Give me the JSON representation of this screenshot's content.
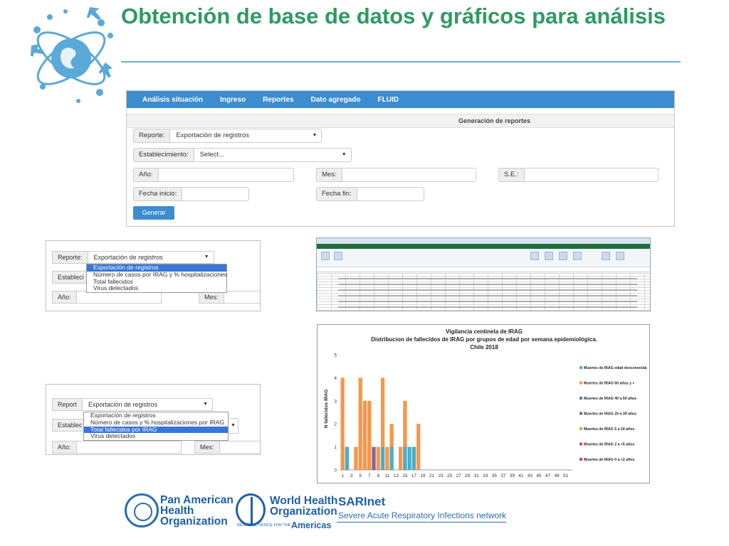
{
  "title": "Obtención de base de datos y gráficos para análisis",
  "app": {
    "nav": [
      "Análisis situación",
      "Ingreso",
      "Reportes",
      "Dato agregado",
      "FLUID"
    ],
    "header": "Generación de reportes",
    "reporte_label": "Reporte:",
    "reporte_value": "Exportación de registros",
    "establecimiento_label": "Establecimiento:",
    "establecimiento_value": "Select...",
    "anio_label": "Año:",
    "mes_label": "Mes:",
    "se_label": "S.E.:",
    "fecha_inicio_label": "Fecha inicio:",
    "fecha_fin_label": "Fecha fin:",
    "generar": "Generar"
  },
  "dropdown1": {
    "label": "Reporte:",
    "value": "Exportación de registros",
    "label2": "Establecí",
    "anio": "Año:",
    "mes": "Mes:",
    "options": [
      "Exportación de registros",
      "Número de casos por IRAG y % hospitalizaciones",
      "Total fallecidos",
      "Virus detectados"
    ],
    "selected_index": 0
  },
  "dropdown2": {
    "label": "Report",
    "value": "Exportación de registros",
    "label2": "Establec",
    "anio": "Año:",
    "mes": "Mes:",
    "options": [
      "Exportación de registros",
      "Número de casos y % hospitalizaciones por IRAG",
      "Total fallecidos por IRAG",
      "Virus detectados"
    ],
    "selected_index": 2
  },
  "chart_data": {
    "type": "bar",
    "title": "Vigilancia centinela de IRAG",
    "subtitle": "Distribucion de fallecidos de IRAG por grupos de edad por semana epidemiológica.",
    "subtitle2": "Chile 2018",
    "ylabel": "N fallecidos IRAG",
    "ylim": [
      0,
      5
    ],
    "yticks": [
      0,
      1,
      2,
      3,
      4,
      5
    ],
    "x_tick_labels": [
      "1",
      "3",
      "5",
      "7",
      "9",
      "11",
      "13",
      "15",
      "17",
      "19",
      "21",
      "23",
      "25",
      "27",
      "29",
      "31",
      "33",
      "35",
      "37",
      "39",
      "41",
      "43",
      "45",
      "47",
      "49",
      "51"
    ],
    "legend_position": "right",
    "colors": {
      "desconocida": "#4bacc6",
      "60mas": "#f79646",
      "40a59": "#4f81bd",
      "20a39": "#8064a2",
      "5a19": "#9bbb59",
      "2a5": "#c0504d",
      "0a2": "#e3403a"
    },
    "legend": [
      "Muertes de IRAG edad desconocida",
      "Muertes de IRAG 60 años y +",
      "Muertes de IRAG 40 a  59 años",
      "Muertes de IRAG 20 a 39 años",
      "Muertes de IRAG 5 a 19 años",
      "Muertes de IRAG 2 a <5 años",
      "Muertes de IRAG 0 a <2 años"
    ],
    "bars": [
      {
        "week": 1,
        "series": "desconocida",
        "value": 1
      },
      {
        "week": 1,
        "series": "60mas",
        "value": 4
      },
      {
        "week": 2,
        "series": "desconocida",
        "value": 1
      },
      {
        "week": 4,
        "series": "60mas",
        "value": 1
      },
      {
        "week": 5,
        "series": "60mas",
        "value": 4
      },
      {
        "week": 6,
        "series": "40a59",
        "value": 2
      },
      {
        "week": 6,
        "series": "60mas",
        "value": 3
      },
      {
        "week": 7,
        "series": "20a39",
        "value": 1
      },
      {
        "week": 7,
        "series": "60mas",
        "value": 3
      },
      {
        "week": 8,
        "series": "20a39",
        "value": 1
      },
      {
        "week": 9,
        "series": "60mas",
        "value": 1
      },
      {
        "week": 10,
        "series": "60mas",
        "value": 4
      },
      {
        "week": 10,
        "series": "desconocida",
        "value": 1
      },
      {
        "week": 11,
        "series": "60mas",
        "value": 1
      },
      {
        "week": 12,
        "series": "60mas",
        "value": 2
      },
      {
        "week": 12,
        "series": "desconocida",
        "value": 1
      },
      {
        "week": 14,
        "series": "60mas",
        "value": 1
      },
      {
        "week": 15,
        "series": "60mas",
        "value": 3
      },
      {
        "week": 15,
        "series": "desconocida",
        "value": 1
      },
      {
        "week": 16,
        "series": "desconocida",
        "value": 1
      },
      {
        "week": 17,
        "series": "60mas",
        "value": 1
      },
      {
        "week": 17,
        "series": "desconocida",
        "value": 1
      },
      {
        "week": 18,
        "series": "60mas",
        "value": 2
      }
    ]
  },
  "footer": {
    "paho": "Pan American\nHealth\nOrganization",
    "who1": "World Health",
    "who2": "Organization",
    "who_small": "REGIONAL OFFICE FOR THE",
    "who_americas": "Americas",
    "sari": "SARInet",
    "sari_sub": "Severe Acute Respiratory Infections network"
  }
}
